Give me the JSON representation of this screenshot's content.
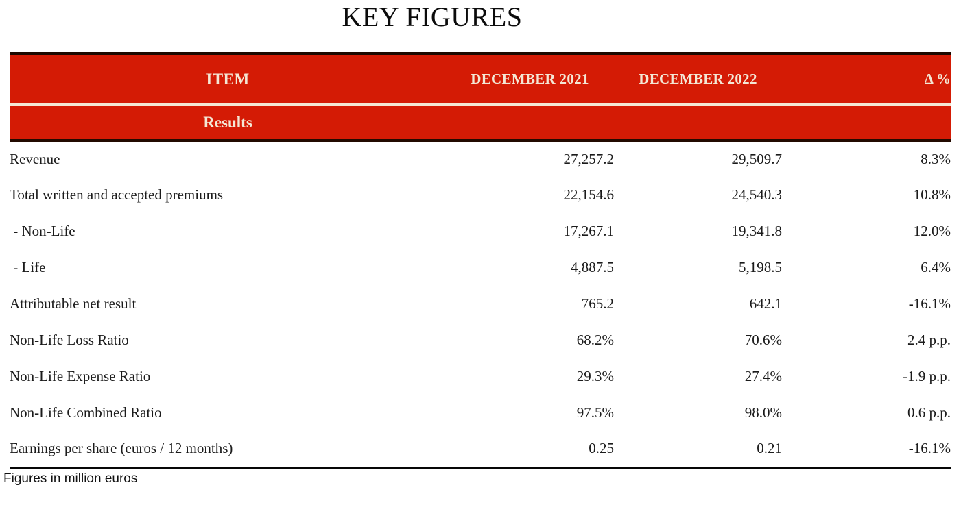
{
  "title": "KEY FIGURES",
  "colors": {
    "accent_red": "#d41b05",
    "header_text_cream": "#f4e7d5",
    "body_text": "#1b1b1b"
  },
  "table": {
    "columns": [
      "ITEM",
      "DECEMBER 2021",
      "DECEMBER 2022",
      "Δ %"
    ],
    "section": "Results",
    "rows": [
      [
        "Revenue",
        "27,257.2",
        "29,509.7",
        "8.3%"
      ],
      [
        "Total written and accepted premiums",
        "22,154.6",
        "24,540.3",
        "10.8%"
      ],
      [
        " - Non-Life",
        "17,267.1",
        "19,341.8",
        "12.0%"
      ],
      [
        " - Life",
        "4,887.5",
        "5,198.5",
        "6.4%"
      ],
      [
        "Attributable net result",
        "765.2",
        "642.1",
        "-16.1%"
      ],
      [
        "Non-Life Loss Ratio",
        "68.2%",
        "70.6%",
        "2.4 p.p."
      ],
      [
        "Non-Life Expense Ratio",
        "29.3%",
        "27.4%",
        "-1.9 p.p."
      ],
      [
        "Non-Life Combined Ratio",
        "97.5%",
        "98.0%",
        "0.6 p.p."
      ],
      [
        "Earnings per share (euros / 12 months)",
        "0.25",
        "0.21",
        "-16.1%"
      ]
    ],
    "footnote": "Figures in million euros"
  }
}
